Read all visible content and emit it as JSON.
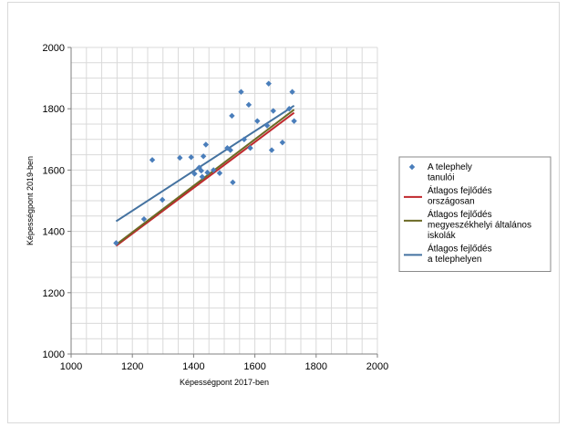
{
  "chart_data": {
    "type": "scatter",
    "title": "",
    "xlabel": "Képességpont 2017-ben",
    "ylabel": "Képességpont 2019-ben",
    "xlim": [
      1000,
      2000
    ],
    "ylim": [
      1000,
      2000
    ],
    "xticks": [
      "1000",
      "1200",
      "1400",
      "1600",
      "1800",
      "2000"
    ],
    "yticks": [
      "1000",
      "1200",
      "1400",
      "1600",
      "1800",
      "2000"
    ],
    "grid": true,
    "legend_position": "right",
    "series": [
      {
        "name": "A telephely tanulói",
        "kind": "points",
        "color": "#4a7ebb",
        "marker": "diamond",
        "points": [
          [
            1147,
            1362
          ],
          [
            1238,
            1440
          ],
          [
            1265,
            1633
          ],
          [
            1298,
            1503
          ],
          [
            1355,
            1640
          ],
          [
            1392,
            1642
          ],
          [
            1403,
            1588
          ],
          [
            1418,
            1608
          ],
          [
            1425,
            1598
          ],
          [
            1432,
            1645
          ],
          [
            1428,
            1578
          ],
          [
            1440,
            1683
          ],
          [
            1445,
            1592
          ],
          [
            1465,
            1600
          ],
          [
            1485,
            1590
          ],
          [
            1510,
            1672
          ],
          [
            1520,
            1665
          ],
          [
            1525,
            1777
          ],
          [
            1528,
            1560
          ],
          [
            1555,
            1855
          ],
          [
            1565,
            1700
          ],
          [
            1580,
            1813
          ],
          [
            1585,
            1672
          ],
          [
            1608,
            1760
          ],
          [
            1640,
            1745
          ],
          [
            1645,
            1882
          ],
          [
            1655,
            1665
          ],
          [
            1660,
            1793
          ],
          [
            1690,
            1690
          ],
          [
            1712,
            1800
          ],
          [
            1722,
            1855
          ],
          [
            1728,
            1760
          ]
        ]
      },
      {
        "name": "Átlagos fejlődés országosan",
        "kind": "line",
        "color": "#c0282d",
        "x": [
          1147,
          1728
        ],
        "y": [
          1353,
          1787
        ]
      },
      {
        "name": "Átlagos fejlődés megyeszékhelyi általános iskolák",
        "kind": "line",
        "color": "#6b6a25",
        "x": [
          1147,
          1728
        ],
        "y": [
          1357,
          1797
        ]
      },
      {
        "name": "Átlagos fejlődés a telephelyen",
        "kind": "line",
        "color": "#4472a0",
        "x": [
          1147,
          1728
        ],
        "y": [
          1433,
          1810
        ]
      }
    ],
    "legend": [
      {
        "lines": [
          "A telephely",
          "tanulói"
        ]
      },
      {
        "lines": [
          "Átlagos fejlődés",
          "országosan"
        ]
      },
      {
        "lines": [
          "Átlagos fejlődés",
          "megyeszékhelyi általános",
          "iskolák"
        ]
      },
      {
        "lines": [
          "Átlagos fejlődés",
          "a telephelyen"
        ]
      }
    ]
  }
}
